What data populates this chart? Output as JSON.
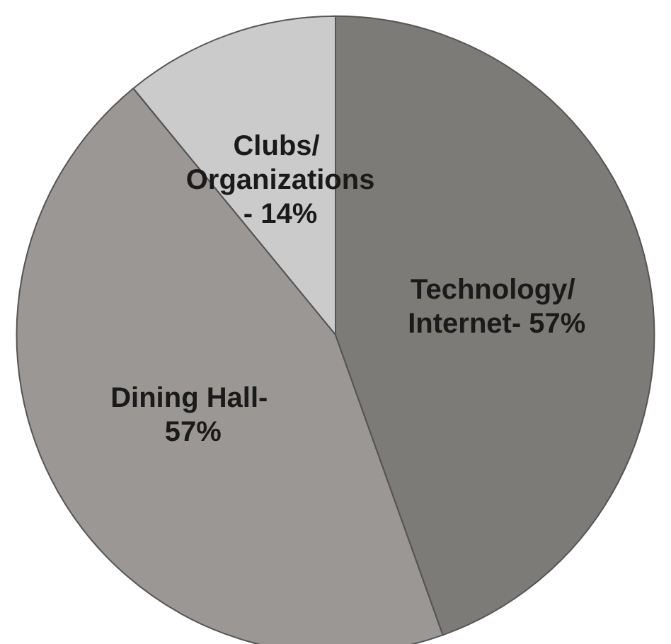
{
  "chart_data": {
    "type": "pie",
    "categories": [
      "Clubs/ Organizations-",
      "Dining Hall-",
      "Technology/ Internet-"
    ],
    "values": [
      14,
      57,
      57
    ],
    "colors": [
      "#cbcbcb",
      "#9a9794",
      "#7d7b78"
    ],
    "value_labels": [
      "14%",
      "57%",
      "57%"
    ]
  }
}
